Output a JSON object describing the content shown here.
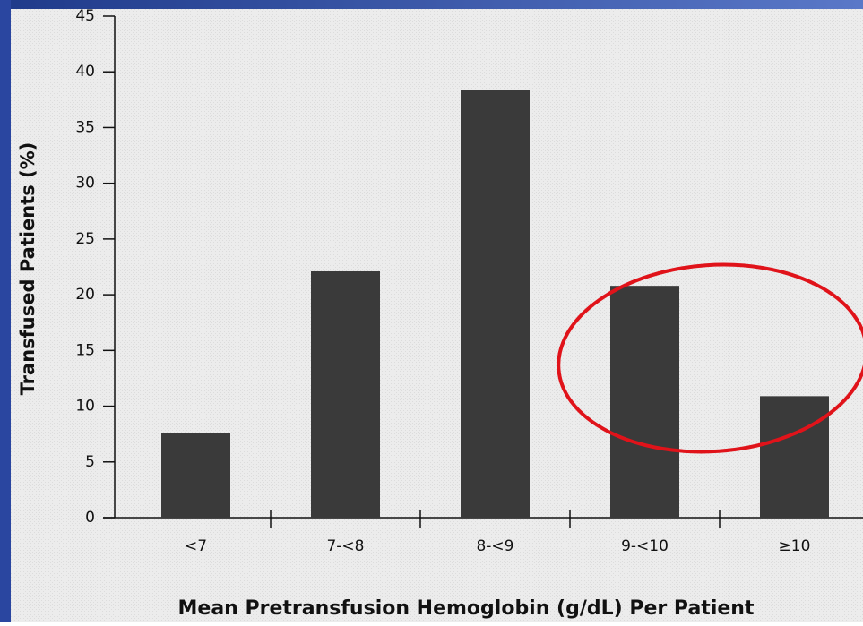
{
  "chart_data": {
    "type": "bar",
    "x_label": "Mean Pretransfusion Hemoglobin (g/dL) Per Patient",
    "y_label": "Transfused Patients (%)",
    "categories": [
      "<7",
      "7-<8",
      "8-<9",
      "9-<10",
      "≥10"
    ],
    "values": [
      7.6,
      22.1,
      38.4,
      20.8,
      10.9
    ],
    "color": "#3a3a3a",
    "ylim": [
      0,
      45
    ],
    "yticks": [
      0,
      5,
      10,
      15,
      20,
      25,
      30,
      35,
      40,
      45
    ]
  }
}
